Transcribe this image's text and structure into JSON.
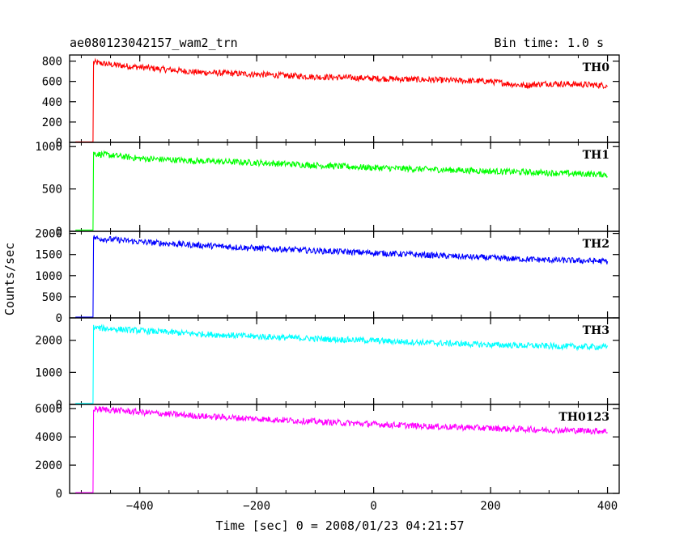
{
  "chart_data": {
    "type": "line",
    "title": "ae080123042157_wam2_trn",
    "subtitle": "Bin time: 1.0 s",
    "xlabel": "Time [sec] 0 = 2008/01/23 04:21:57",
    "ylabel": "Counts/sec",
    "xlim": [
      -520,
      420
    ],
    "xticks": [
      -400,
      -200,
      0,
      200,
      400
    ],
    "x_tick_labels": [
      "−400",
      "−200",
      "0",
      "200",
      "400"
    ],
    "series": [
      {
        "name": "TH0",
        "color": "#ff0000",
        "ylim": [
          0,
          860
        ],
        "yticks": [
          0,
          200,
          400,
          600,
          800
        ],
        "y_tick_labels": [
          "0",
          "200",
          "400",
          "600",
          "800"
        ],
        "x": [
          -510,
          -480,
          -479,
          -470,
          -440,
          -400,
          -300,
          -200,
          -100,
          0,
          100,
          200,
          255,
          300,
          400
        ],
        "y": [
          5,
          5,
          790,
          780,
          760,
          740,
          690,
          670,
          645,
          630,
          615,
          600,
          560,
          580,
          560
        ]
      },
      {
        "name": "TH1",
        "color": "#00ff00",
        "ylim": [
          0,
          1050
        ],
        "yticks": [
          0,
          500,
          1000
        ],
        "y_tick_labels": [
          "0",
          "500",
          "1000"
        ],
        "x": [
          -510,
          -480,
          -479,
          -470,
          -440,
          -400,
          -300,
          -200,
          -100,
          0,
          100,
          200,
          300,
          400
        ],
        "y": [
          15,
          15,
          920,
          910,
          890,
          860,
          830,
          810,
          780,
          750,
          730,
          710,
          690,
          670
        ]
      },
      {
        "name": "TH2",
        "color": "#0000ff",
        "ylim": [
          0,
          2050
        ],
        "yticks": [
          0,
          500,
          1000,
          1500,
          2000
        ],
        "y_tick_labels": [
          "0",
          "500",
          "1000",
          "1500",
          "2000"
        ],
        "x": [
          -510,
          -480,
          -479,
          -470,
          -440,
          -400,
          -300,
          -200,
          -100,
          0,
          100,
          200,
          300,
          400
        ],
        "y": [
          20,
          20,
          1900,
          1880,
          1850,
          1800,
          1720,
          1650,
          1590,
          1540,
          1480,
          1420,
          1370,
          1340
        ]
      },
      {
        "name": "TH3",
        "color": "#00ffff",
        "ylim": [
          0,
          2700
        ],
        "yticks": [
          0,
          1000,
          2000
        ],
        "y_tick_labels": [
          "0",
          "1000",
          "2000"
        ],
        "x": [
          -510,
          -480,
          -479,
          -470,
          -440,
          -400,
          -300,
          -200,
          -100,
          0,
          100,
          200,
          300,
          400
        ],
        "y": [
          30,
          30,
          2400,
          2380,
          2350,
          2300,
          2200,
          2120,
          2050,
          1990,
          1920,
          1860,
          1820,
          1790
        ]
      },
      {
        "name": "TH0123",
        "color": "#ff00ff",
        "ylim": [
          0,
          6300
        ],
        "yticks": [
          0,
          2000,
          4000,
          6000
        ],
        "y_tick_labels": [
          "0",
          "2000",
          "4000",
          "6000"
        ],
        "x": [
          -510,
          -480,
          -479,
          -470,
          -440,
          -400,
          -300,
          -200,
          -100,
          0,
          100,
          200,
          300,
          400
        ],
        "y": [
          60,
          60,
          6000,
          5960,
          5880,
          5750,
          5480,
          5280,
          5080,
          4900,
          4740,
          4610,
          4490,
          4410
        ]
      }
    ],
    "noise_fraction": 0.035,
    "grid": false
  }
}
